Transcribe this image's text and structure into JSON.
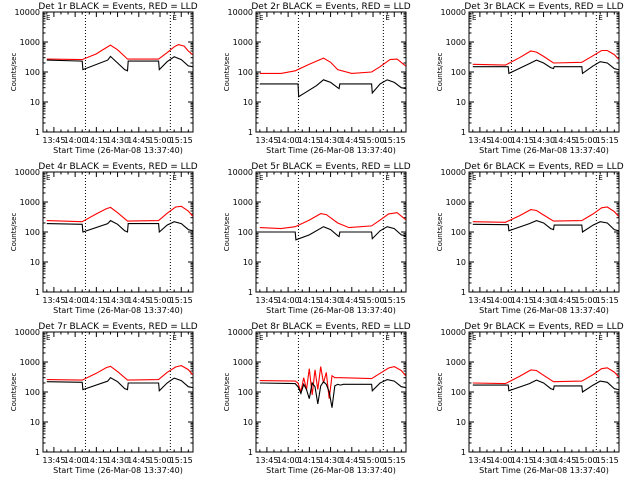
{
  "page": {
    "rows": 3,
    "cols": 3
  },
  "colors": {
    "events": "#000000",
    "lld": "#ff0000",
    "background": "#ffffff",
    "axes": "#000000"
  },
  "chart_data": [
    {
      "type": "line",
      "panel": 1,
      "title": "Det 1r BLACK = Events, RED = LLD",
      "xlabel": "Start Time (26-Mar-08 13:37:40)",
      "ylabel": "Counts/sec",
      "x_ticks": [
        "13:45",
        "14:00",
        "14:15",
        "14:30",
        "14:45",
        "15:00",
        "15:15"
      ],
      "y_ticks": [
        "1",
        "10",
        "100",
        "1000",
        "10000"
      ],
      "ylim": [
        1,
        10000
      ],
      "y_scale": "log",
      "x_range_min": [
        -7.7,
        98.3
      ],
      "vlines_min": [
        22.3,
        82.3
      ],
      "corner_labels": [
        "E",
        "E"
      ],
      "series": [
        {
          "name": "Events",
          "color": "#000000",
          "x": [
            -5,
            20,
            20.5,
            38,
            40,
            45,
            50,
            52,
            52.5,
            74,
            74.5,
            80,
            85,
            90,
            95,
            98
          ],
          "y": [
            250,
            230,
            120,
            250,
            330,
            200,
            120,
            110,
            230,
            230,
            120,
            220,
            320,
            260,
            160,
            150
          ]
        },
        {
          "name": "LLD",
          "color": "#ff0000",
          "x": [
            -5,
            20,
            30,
            37,
            40,
            45,
            50,
            52,
            74,
            80,
            85,
            88,
            92,
            95,
            98
          ],
          "y": [
            270,
            260,
            400,
            650,
            780,
            550,
            330,
            270,
            270,
            440,
            690,
            820,
            730,
            500,
            380
          ]
        }
      ]
    },
    {
      "type": "line",
      "panel": 2,
      "title": "Det 2r BLACK = Events, RED = LLD",
      "xlabel": "Start Time (26-Mar-08 13:37:40)",
      "ylabel": "Counts/sec",
      "x_ticks": [
        "13:45",
        "14:00",
        "14:15",
        "14:30",
        "14:45",
        "15:00",
        "15:15"
      ],
      "y_ticks": [
        "1",
        "10",
        "100",
        "1000",
        "10000"
      ],
      "ylim": [
        1,
        10000
      ],
      "y_scale": "log",
      "x_range_min": [
        -7.7,
        98.3
      ],
      "vlines_min": [
        22.3,
        82.3
      ],
      "corner_labels": [
        "E",
        "E"
      ],
      "series": [
        {
          "name": "Events",
          "color": "#000000",
          "x": [
            -5,
            22,
            22.5,
            35,
            40,
            45,
            50,
            51,
            51.5,
            74,
            74.5,
            80,
            85,
            90,
            95,
            98
          ],
          "y": [
            40,
            40,
            15,
            35,
            55,
            45,
            30,
            28,
            40,
            40,
            20,
            40,
            55,
            45,
            30,
            28
          ]
        },
        {
          "name": "LLD",
          "color": "#ff0000",
          "x": [
            -5,
            10,
            20,
            30,
            40,
            45,
            50,
            60,
            74,
            80,
            87,
            92,
            98
          ],
          "y": [
            90,
            90,
            110,
            180,
            290,
            210,
            120,
            90,
            100,
            150,
            260,
            270,
            160
          ]
        }
      ]
    },
    {
      "type": "line",
      "panel": 3,
      "title": "Det 3r BLACK = Events, RED = LLD",
      "xlabel": "Start Time (26-Mar-08 13:37:40)",
      "ylabel": "Counts/sec",
      "x_ticks": [
        "13:45",
        "14:00",
        "14:15",
        "14:30",
        "14:45",
        "15:00",
        "15:15"
      ],
      "y_ticks": [
        "1",
        "10",
        "100",
        "1000",
        "10000"
      ],
      "ylim": [
        1,
        10000
      ],
      "y_scale": "log",
      "x_range_min": [
        -7.7,
        98.3
      ],
      "vlines_min": [
        22.3,
        82.3
      ],
      "corner_labels": [
        "E",
        "E"
      ],
      "series": [
        {
          "name": "Events",
          "color": "#000000",
          "x": [
            -5,
            20,
            20.5,
            35,
            40,
            45,
            50,
            52,
            52.5,
            72,
            72.5,
            80,
            85,
            90,
            95,
            98
          ],
          "y": [
            150,
            150,
            90,
            190,
            250,
            200,
            140,
            130,
            150,
            150,
            90,
            160,
            220,
            200,
            130,
            120
          ]
        },
        {
          "name": "LLD",
          "color": "#ff0000",
          "x": [
            -5,
            18,
            28,
            36,
            40,
            45,
            52,
            72,
            80,
            86,
            90,
            95,
            98
          ],
          "y": [
            180,
            170,
            300,
            500,
            460,
            330,
            200,
            210,
            350,
            520,
            520,
            380,
            270
          ]
        }
      ]
    },
    {
      "type": "line",
      "panel": 4,
      "title": "Det 4r BLACK = Events, RED = LLD",
      "xlabel": "Start Time (26-Mar-08 13:37:40)",
      "ylabel": "Counts/sec",
      "x_ticks": [
        "13:45",
        "14:00",
        "14:15",
        "14:30",
        "14:45",
        "15:00",
        "15:15"
      ],
      "y_ticks": [
        "1",
        "10",
        "100",
        "1000",
        "10000"
      ],
      "ylim": [
        1,
        10000
      ],
      "y_scale": "log",
      "x_range_min": [
        -7.7,
        98.3
      ],
      "vlines_min": [
        22.3,
        82.3
      ],
      "corner_labels": [
        "E",
        "E"
      ],
      "series": [
        {
          "name": "Events",
          "color": "#000000",
          "x": [
            -5,
            20,
            20.5,
            38,
            40,
            45,
            50,
            52,
            52.5,
            74,
            74.5,
            80,
            85,
            90,
            95,
            98
          ],
          "y": [
            190,
            180,
            100,
            190,
            240,
            180,
            110,
            100,
            190,
            190,
            100,
            170,
            220,
            190,
            120,
            110
          ]
        },
        {
          "name": "LLD",
          "color": "#ff0000",
          "x": [
            -5,
            20,
            30,
            37,
            40,
            45,
            52,
            74,
            80,
            86,
            90,
            95,
            98
          ],
          "y": [
            240,
            220,
            400,
            600,
            660,
            440,
            230,
            240,
            420,
            680,
            720,
            500,
            340
          ]
        }
      ]
    },
    {
      "type": "line",
      "panel": 5,
      "title": "Det 5r BLACK = Events, RED = LLD",
      "xlabel": "Start Time (26-Mar-08 13:37:40)",
      "ylabel": "Counts/sec",
      "x_ticks": [
        "13:45",
        "14:00",
        "14:15",
        "14:30",
        "14:45",
        "15:00",
        "15:15"
      ],
      "y_ticks": [
        "1",
        "10",
        "100",
        "1000",
        "10000"
      ],
      "ylim": [
        1,
        10000
      ],
      "y_scale": "log",
      "x_range_min": [
        -7.7,
        98.3
      ],
      "vlines_min": [
        22.3,
        82.3
      ],
      "corner_labels": [
        "E",
        "E"
      ],
      "series": [
        {
          "name": "Events",
          "color": "#000000",
          "x": [
            -5,
            20,
            20.5,
            30,
            40,
            45,
            50,
            51,
            51.5,
            74,
            74.5,
            80,
            85,
            90,
            95,
            98
          ],
          "y": [
            100,
            100,
            55,
            80,
            150,
            120,
            75,
            70,
            100,
            100,
            60,
            110,
            150,
            130,
            80,
            75
          ]
        },
        {
          "name": "LLD",
          "color": "#ff0000",
          "x": [
            -5,
            10,
            20,
            30,
            38,
            42,
            50,
            58,
            74,
            80,
            86,
            92,
            98
          ],
          "y": [
            140,
            130,
            150,
            250,
            410,
            380,
            200,
            140,
            160,
            250,
            400,
            440,
            260
          ]
        }
      ]
    },
    {
      "type": "line",
      "panel": 6,
      "title": "Det 6r BLACK = Events, RED = LLD",
      "xlabel": "Start Time (26-Mar-08 13:37:40)",
      "ylabel": "Counts/sec",
      "x_ticks": [
        "13:45",
        "14:00",
        "14:15",
        "14:30",
        "14:45",
        "15:00",
        "15:15"
      ],
      "y_ticks": [
        "1",
        "10",
        "100",
        "1000",
        "10000"
      ],
      "ylim": [
        1,
        10000
      ],
      "y_scale": "log",
      "x_range_min": [
        -7.7,
        98.3
      ],
      "vlines_min": [
        22.3,
        82.3
      ],
      "corner_labels": [
        "E",
        "E"
      ],
      "series": [
        {
          "name": "Events",
          "color": "#000000",
          "x": [
            -5,
            20,
            20.5,
            35,
            40,
            45,
            50,
            52,
            52.5,
            72,
            72.5,
            80,
            85,
            90,
            95,
            98
          ],
          "y": [
            180,
            175,
            110,
            190,
            240,
            200,
            130,
            120,
            170,
            170,
            100,
            170,
            220,
            200,
            120,
            110
          ]
        },
        {
          "name": "LLD",
          "color": "#ff0000",
          "x": [
            -5,
            18,
            28,
            36,
            40,
            45,
            52,
            72,
            80,
            86,
            90,
            95,
            98
          ],
          "y": [
            220,
            210,
            350,
            560,
            520,
            370,
            230,
            240,
            400,
            640,
            680,
            480,
            330
          ]
        }
      ]
    },
    {
      "type": "line",
      "panel": 7,
      "title": "Det 7r BLACK = Events, RED = LLD",
      "xlabel": "Start Time (26-Mar-08 13:37:40)",
      "ylabel": "Counts/sec",
      "x_ticks": [
        "13:45",
        "14:00",
        "14:15",
        "14:30",
        "14:45",
        "15:00",
        "15:15"
      ],
      "y_ticks": [
        "1",
        "10",
        "100",
        "1000",
        "10000"
      ],
      "ylim": [
        1,
        10000
      ],
      "y_scale": "log",
      "x_range_min": [
        -7.7,
        98.3
      ],
      "vlines_min": [
        22.3,
        82.3
      ],
      "corner_labels": [
        "E",
        "E"
      ],
      "series": [
        {
          "name": "Events",
          "color": "#000000",
          "x": [
            -5,
            20,
            20.5,
            38,
            40,
            45,
            50,
            52,
            52.5,
            74,
            74.5,
            80,
            85,
            90,
            95,
            98
          ],
          "y": [
            220,
            210,
            120,
            230,
            300,
            220,
            130,
            120,
            200,
            200,
            110,
            200,
            290,
            240,
            150,
            140
          ]
        },
        {
          "name": "LLD",
          "color": "#ff0000",
          "x": [
            -5,
            20,
            30,
            37,
            40,
            45,
            52,
            74,
            80,
            86,
            90,
            95,
            98
          ],
          "y": [
            260,
            250,
            420,
            650,
            720,
            480,
            250,
            260,
            450,
            680,
            760,
            560,
            380
          ]
        }
      ]
    },
    {
      "type": "line",
      "panel": 8,
      "title": "Det 8r BLACK = Events, RED = LLD",
      "xlabel": "Start Time (26-Mar-08 13:37:40)",
      "ylabel": "Counts/sec",
      "x_ticks": [
        "13:45",
        "14:00",
        "14:15",
        "14:30",
        "14:45",
        "15:00",
        "15:15"
      ],
      "y_ticks": [
        "1",
        "10",
        "100",
        "1000",
        "10000"
      ],
      "ylim": [
        1,
        10000
      ],
      "y_scale": "log",
      "x_range_min": [
        -7.7,
        98.3
      ],
      "vlines_min": [
        22.3,
        82.3
      ],
      "corner_labels": [
        "E",
        "E"
      ],
      "series": [
        {
          "name": "Events",
          "color": "#000000",
          "x": [
            -5,
            20,
            22,
            24,
            26,
            28,
            30,
            32,
            34,
            36,
            38,
            40,
            42,
            44,
            46,
            48,
            50,
            52,
            54,
            74,
            74.5,
            80,
            85,
            90,
            95,
            98
          ],
          "y": [
            200,
            190,
            150,
            90,
            180,
            120,
            60,
            200,
            150,
            40,
            160,
            220,
            180,
            100,
            30,
            160,
            180,
            170,
            180,
            180,
            110,
            200,
            260,
            230,
            150,
            140
          ]
        },
        {
          "name": "LLD",
          "color": "#ff0000",
          "x": [
            -5,
            20,
            22,
            24,
            26,
            28,
            30,
            32,
            34,
            36,
            38,
            40,
            42,
            44,
            46,
            48,
            52,
            74,
            80,
            86,
            90,
            95,
            98
          ],
          "y": [
            240,
            230,
            200,
            100,
            300,
            120,
            600,
            80,
            550,
            120,
            700,
            200,
            450,
            60,
            350,
            300,
            300,
            280,
            420,
            630,
            700,
            520,
            350
          ]
        }
      ]
    },
    {
      "type": "line",
      "panel": 9,
      "title": "Det 9r BLACK = Events, RED = LLD",
      "xlabel": "Start Time (26-Mar-08 13:37:40)",
      "ylabel": "Counts/sec",
      "x_ticks": [
        "13:45",
        "14:00",
        "14:15",
        "14:30",
        "14:45",
        "15:00",
        "15:15"
      ],
      "y_ticks": [
        "1",
        "10",
        "100",
        "1000",
        "10000"
      ],
      "ylim": [
        1,
        10000
      ],
      "y_scale": "log",
      "x_range_min": [
        -7.7,
        98.3
      ],
      "vlines_min": [
        22.3,
        82.3
      ],
      "corner_labels": [
        "E",
        "E"
      ],
      "series": [
        {
          "name": "Events",
          "color": "#000000",
          "x": [
            -5,
            20,
            20.5,
            35,
            40,
            45,
            50,
            52,
            52.5,
            72,
            72.5,
            80,
            85,
            90,
            95,
            98
          ],
          "y": [
            170,
            170,
            110,
            190,
            250,
            200,
            130,
            120,
            160,
            160,
            100,
            170,
            230,
            210,
            130,
            120
          ]
        },
        {
          "name": "LLD",
          "color": "#ff0000",
          "x": [
            -5,
            18,
            28,
            36,
            40,
            45,
            52,
            72,
            80,
            86,
            90,
            95,
            98
          ],
          "y": [
            200,
            190,
            330,
            540,
            520,
            360,
            220,
            230,
            380,
            600,
            640,
            460,
            320
          ]
        }
      ]
    }
  ]
}
